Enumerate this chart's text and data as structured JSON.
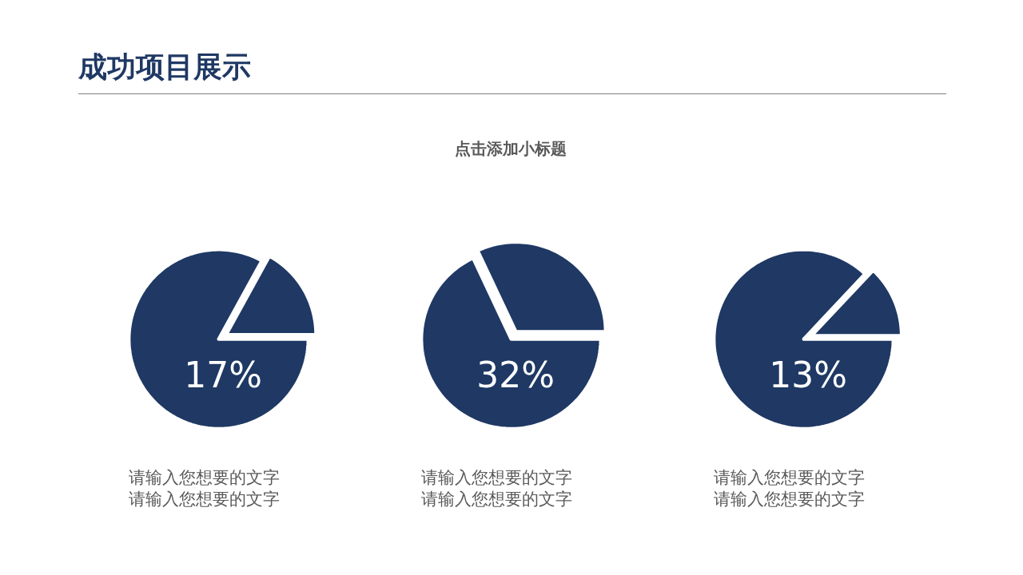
{
  "chart_data": [
    {
      "type": "pie",
      "title": "成功项目展示",
      "categories": [
        null,
        null
      ],
      "values": [
        17,
        83
      ],
      "colors": [
        "#1f3864",
        "#1f3864"
      ],
      "annotations": [
        "17%",
        "请输入您想要的文字",
        "请输入您想要的文字"
      ]
    },
    {
      "type": "pie",
      "subtitle": "点击添加小标题",
      "categories": [
        null,
        null
      ],
      "values": [
        32,
        68
      ],
      "colors": [
        "#1f3864",
        "#1f3864"
      ],
      "annotations": [
        "32%",
        "请输入您想要的文字",
        "请输入您想要的文字"
      ]
    },
    {
      "type": "pie",
      "categories": [
        null,
        null
      ],
      "values": [
        13,
        87
      ],
      "colors": [
        "#1f3864",
        "#1f3864"
      ],
      "annotations": [
        "13%",
        "请输入您想要的文字",
        "请输入您想要的文字"
      ]
    }
  ]
}
